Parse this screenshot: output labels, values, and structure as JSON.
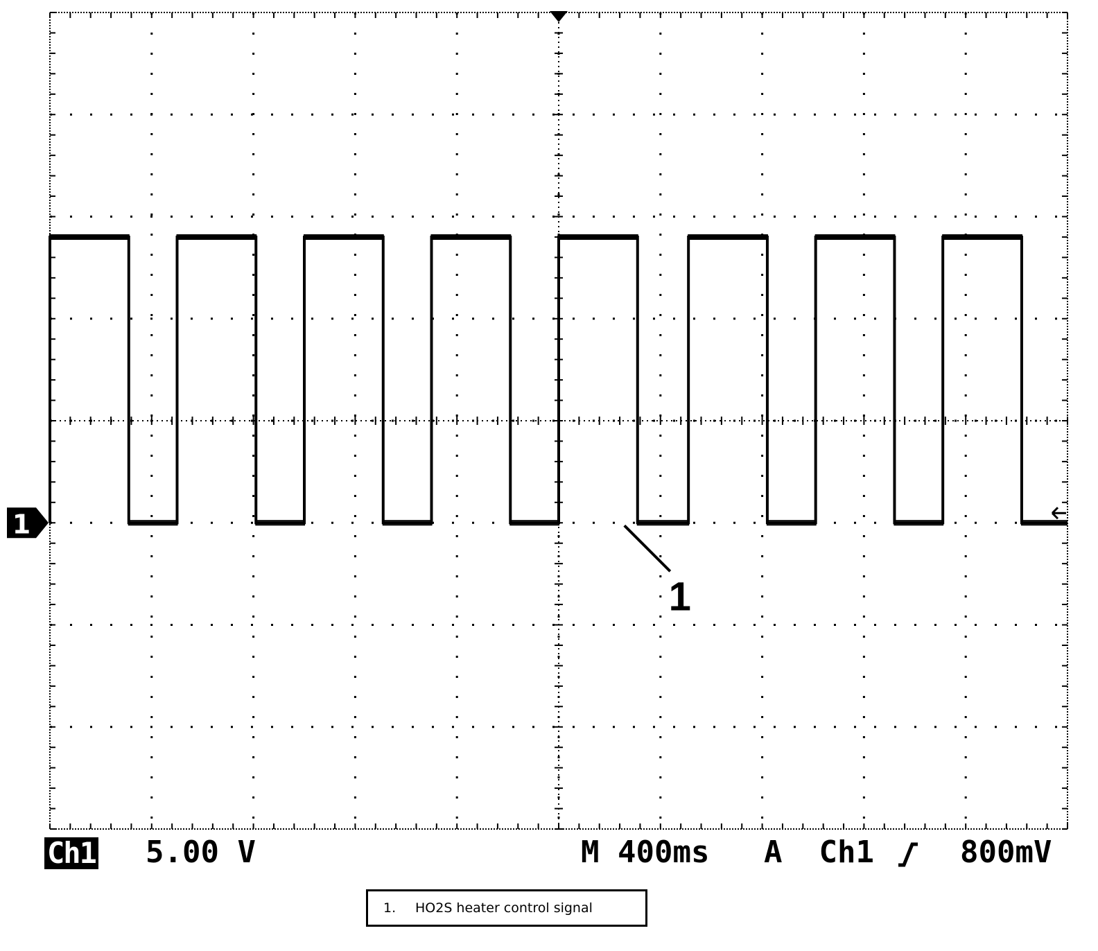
{
  "chart_data": {
    "type": "line",
    "title": "",
    "xlabel": "",
    "ylabel": "",
    "x_divisions": 10,
    "y_divisions": 8,
    "x_unit": "s",
    "y_unit": "V",
    "time_per_div_s": 0.4,
    "volts_per_div": 5.0,
    "xlim": [
      0,
      4.0
    ],
    "ylim": [
      -15,
      25
    ],
    "grid": true,
    "ground_marker": "1",
    "series": [
      {
        "name": "Ch1",
        "waveform": "square",
        "high_V": 14,
        "low_V": 0,
        "high_intervals_s": [
          [
            0.0,
            0.31
          ],
          [
            0.5,
            0.81
          ],
          [
            1.0,
            1.31
          ],
          [
            1.5,
            1.81
          ],
          [
            2.0,
            2.31
          ],
          [
            2.51,
            2.82
          ],
          [
            3.01,
            3.32
          ],
          [
            3.51,
            3.82
          ]
        ],
        "x_end_s": 4.0
      }
    ],
    "annotations": [
      {
        "label": "1",
        "x": 2.4,
        "y": 0
      }
    ]
  },
  "readout": {
    "channel_badge": "Ch1",
    "volts_per_div": "5.00 V",
    "timebase": "M 400ms",
    "trigger_source": "A  Ch1",
    "trigger_level": "800mV"
  },
  "legend": {
    "number": "1.",
    "text": "HO2S heater control signal"
  }
}
